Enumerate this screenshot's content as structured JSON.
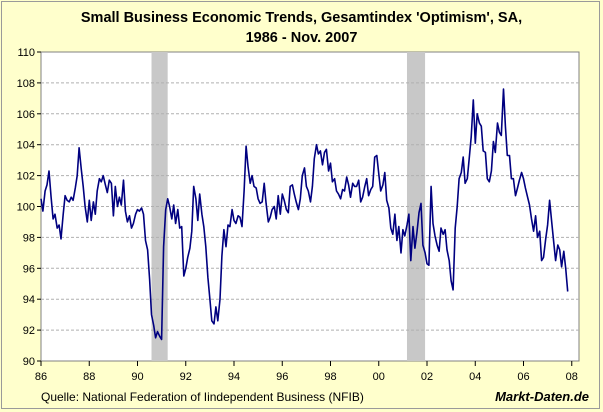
{
  "title_line1": "Small Business Economic Trends, Gesamtindex 'Optimism', SA,",
  "title_line2": "1986 - Nov. 2007",
  "source": "Quelle: National Federation of Iindependent Business (NFIB)",
  "brand": "Markt-Daten.de",
  "colors": {
    "background": "#ffffcc",
    "plot_background": "#ffffff",
    "line": "#000080",
    "recession": "#c8c8c8",
    "grid": "#b0b0b0"
  },
  "chart_data": {
    "type": "line",
    "title": "Small Business Economic Trends, Gesamtindex 'Optimism', SA, 1986 - Nov. 2007",
    "xlabel": "",
    "ylabel": "",
    "xlim": [
      1986,
      2008.3
    ],
    "ylim": [
      90,
      110
    ],
    "x_ticks": [
      1986,
      1988,
      1990,
      1992,
      1994,
      1996,
      1998,
      2000,
      2002,
      2004,
      2006,
      2008
    ],
    "x_tick_labels": [
      "86",
      "88",
      "90",
      "92",
      "94",
      "96",
      "98",
      "00",
      "02",
      "04",
      "06",
      "08"
    ],
    "y_ticks": [
      90,
      92,
      94,
      96,
      98,
      100,
      102,
      104,
      106,
      108,
      110
    ],
    "y_tick_labels": [
      "90",
      "92",
      "94",
      "96",
      "98",
      "100",
      "102",
      "104",
      "106",
      "108",
      "110"
    ],
    "grid": "horizontal-dashed",
    "shaded_periods": [
      [
        1990.58,
        1991.25
      ],
      [
        2001.17,
        2001.92
      ]
    ],
    "series": [
      {
        "x": [
          1986.0,
          1986.08,
          1986.17,
          1986.25,
          1986.33,
          1986.42,
          1986.5,
          1986.58,
          1986.67,
          1986.75,
          1986.83,
          1986.92,
          1987.0,
          1987.08,
          1987.17,
          1987.25,
          1987.33,
          1987.42,
          1987.5,
          1987.58,
          1987.67,
          1987.75,
          1987.83,
          1987.92,
          1988.0,
          1988.08,
          1988.17,
          1988.25,
          1988.33,
          1988.42,
          1988.5,
          1988.58,
          1988.67,
          1988.75,
          1988.83,
          1988.92,
          1989.0,
          1989.08,
          1989.17,
          1989.25,
          1989.33,
          1989.42,
          1989.5,
          1989.58,
          1989.67,
          1989.75,
          1989.83,
          1989.92,
          1990.0,
          1990.08,
          1990.17,
          1990.25,
          1990.33,
          1990.42,
          1990.5,
          1990.58,
          1990.67,
          1990.75,
          1990.83,
          1990.92,
          1991.0,
          1991.08,
          1991.17,
          1991.25,
          1991.33,
          1991.42,
          1991.5,
          1991.58,
          1991.67,
          1991.75,
          1991.83,
          1991.92,
          1992.0,
          1992.08,
          1992.17,
          1992.25,
          1992.33,
          1992.42,
          1992.5,
          1992.58,
          1992.67,
          1992.75,
          1992.83,
          1992.92,
          1993.0,
          1993.08,
          1993.17,
          1993.25,
          1993.33,
          1993.42,
          1993.5,
          1993.58,
          1993.67,
          1993.75,
          1993.83,
          1993.92,
          1994.0,
          1994.08,
          1994.17,
          1994.25,
          1994.33,
          1994.42,
          1994.5,
          1994.58,
          1994.67,
          1994.75,
          1994.83,
          1994.92,
          1995.0,
          1995.08,
          1995.17,
          1995.25,
          1995.33,
          1995.42,
          1995.5,
          1995.58,
          1995.67,
          1995.75,
          1995.83,
          1995.92,
          1996.0,
          1996.08,
          1996.17,
          1996.25,
          1996.33,
          1996.42,
          1996.5,
          1996.58,
          1996.67,
          1996.75,
          1996.83,
          1996.92,
          1997.0,
          1997.08,
          1997.17,
          1997.25,
          1997.33,
          1997.42,
          1997.5,
          1997.58,
          1997.67,
          1997.75,
          1997.83,
          1997.92,
          1998.0,
          1998.08,
          1998.17,
          1998.25,
          1998.33,
          1998.42,
          1998.5,
          1998.58,
          1998.67,
          1998.75,
          1998.83,
          1998.92,
          1999.0,
          1999.08,
          1999.17,
          1999.25,
          1999.33,
          1999.42,
          1999.5,
          1999.58,
          1999.67,
          1999.75,
          1999.83,
          1999.92,
          2000.0,
          2000.08,
          2000.17,
          2000.25,
          2000.33,
          2000.42,
          2000.5,
          2000.58,
          2000.67,
          2000.75,
          2000.83,
          2000.92,
          2001.0,
          2001.08,
          2001.17,
          2001.25,
          2001.33,
          2001.42,
          2001.5,
          2001.58,
          2001.67,
          2001.75,
          2001.83,
          2001.92,
          2002.0,
          2002.08,
          2002.17,
          2002.25,
          2002.33,
          2002.42,
          2002.5,
          2002.58,
          2002.67,
          2002.75,
          2002.83,
          2002.92,
          2003.0,
          2003.08,
          2003.17,
          2003.25,
          2003.33,
          2003.42,
          2003.5,
          2003.58,
          2003.67,
          2003.75,
          2003.83,
          2003.92,
          2004.0,
          2004.08,
          2004.17,
          2004.25,
          2004.33,
          2004.42,
          2004.5,
          2004.58,
          2004.67,
          2004.75,
          2004.83,
          2004.92,
          2005.0,
          2005.08,
          2005.17,
          2005.25,
          2005.33,
          2005.42,
          2005.5,
          2005.58,
          2005.67,
          2005.75,
          2005.83,
          2005.92,
          2006.0,
          2006.08,
          2006.17,
          2006.25,
          2006.33,
          2006.42,
          2006.5,
          2006.58,
          2006.67,
          2006.75,
          2006.83,
          2006.92,
          2007.0,
          2007.08,
          2007.17,
          2007.25,
          2007.33,
          2007.42,
          2007.5,
          2007.58,
          2007.67,
          2007.75,
          2007.83
        ],
        "y": [
          100.5,
          99.7,
          101.0,
          101.4,
          102.3,
          100.6,
          99.2,
          99.5,
          98.6,
          98.8,
          97.9,
          99.5,
          100.7,
          100.4,
          100.3,
          100.6,
          100.4,
          101.2,
          102.0,
          103.8,
          102.4,
          101.3,
          100.0,
          99.0,
          100.4,
          99.1,
          100.3,
          99.5,
          101.0,
          101.8,
          101.6,
          102.0,
          101.4,
          100.9,
          101.7,
          101.5,
          99.4,
          101.3,
          100.0,
          100.6,
          100.1,
          101.7,
          99.7,
          99.0,
          99.4,
          98.6,
          98.9,
          99.5,
          99.8,
          99.7,
          99.9,
          99.5,
          97.8,
          97.2,
          95.3,
          93.0,
          92.3,
          91.5,
          91.9,
          91.6,
          91.4,
          97.4,
          99.8,
          100.5,
          100.0,
          99.2,
          100.1,
          98.9,
          99.8,
          98.6,
          98.7,
          95.5,
          96.0,
          96.7,
          97.3,
          98.4,
          101.3,
          100.5,
          99.1,
          100.8,
          99.5,
          98.7,
          97.4,
          95.4,
          94.0,
          92.6,
          92.4,
          93.5,
          92.6,
          94.0,
          96.8,
          98.5,
          97.4,
          98.8,
          98.7,
          99.8,
          99.1,
          98.9,
          99.4,
          99.3,
          98.7,
          101.0,
          103.9,
          102.6,
          101.5,
          102.0,
          101.3,
          101.2,
          100.5,
          100.2,
          100.3,
          101.5,
          100.2,
          99.0,
          99.3,
          99.8,
          100.0,
          99.2,
          100.7,
          99.5,
          100.8,
          100.4,
          99.8,
          99.6,
          101.3,
          101.4,
          100.8,
          100.3,
          99.8,
          100.5,
          102.0,
          102.5,
          101.3,
          101.0,
          100.3,
          101.3,
          103.1,
          104.0,
          103.4,
          103.6,
          102.7,
          103.5,
          103.7,
          102.3,
          102.8,
          101.6,
          101.8,
          101.0,
          100.8,
          100.5,
          101.1,
          101.0,
          101.9,
          101.4,
          100.6,
          101.5,
          101.3,
          101.3,
          101.7,
          100.3,
          100.6,
          101.3,
          101.8,
          100.7,
          101.1,
          101.3,
          103.2,
          103.3,
          102.1,
          101.0,
          101.4,
          102.2,
          100.4,
          99.9,
          98.6,
          98.2,
          99.5,
          97.8,
          98.7,
          97.0,
          98.5,
          98.1,
          98.8,
          99.5,
          96.5,
          98.7,
          97.3,
          98.3,
          99.6,
          100.2,
          97.5,
          97.0,
          96.3,
          96.2,
          101.3,
          98.9,
          98.1,
          97.5,
          97.1,
          98.6,
          98.2,
          98.5,
          97.2,
          96.5,
          95.2,
          94.6,
          98.6,
          100.0,
          101.8,
          102.2,
          103.2,
          101.5,
          101.8,
          103.1,
          104.5,
          106.9,
          104.1,
          106.0,
          105.4,
          105.2,
          103.6,
          103.5,
          101.8,
          101.6,
          102.3,
          104.2,
          103.5,
          105.4,
          104.8,
          104.6,
          107.6,
          105.2,
          103.3,
          103.3,
          101.8,
          101.8,
          100.7,
          101.2,
          101.7,
          102.2,
          101.8,
          101.2,
          100.6,
          100.1,
          99.2,
          98.4,
          99.4,
          98.0,
          98.4,
          96.5,
          96.7,
          97.9,
          98.8,
          100.4,
          99.0,
          97.7,
          96.5,
          97.5,
          97.2,
          96.1,
          97.1,
          96.0,
          94.5
        ]
      }
    ]
  }
}
